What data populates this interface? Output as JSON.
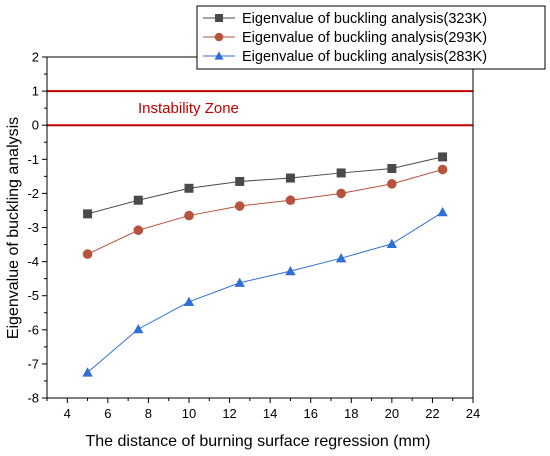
{
  "chart_data": {
    "type": "line",
    "xlabel": "The distance of burning surface regression (mm)",
    "ylabel": "Eigenvalue of buckling analysis",
    "xlim": [
      3,
      24
    ],
    "ylim": [
      -8,
      2
    ],
    "xticks": [
      4,
      6,
      8,
      10,
      12,
      14,
      16,
      18,
      20,
      22,
      24
    ],
    "yticks": [
      -8,
      -7,
      -6,
      -5,
      -4,
      -3,
      -2,
      -1,
      0,
      1,
      2
    ],
    "grid": false,
    "legend_position": "top-right",
    "annotation": {
      "text": "Instability Zone",
      "band": [
        0,
        1
      ],
      "color": "#c00000"
    },
    "series": [
      {
        "name": "Eigenvalue of buckling analysis(323K)",
        "marker": "square",
        "color": "#4a4a4a",
        "x": [
          5,
          7.5,
          10,
          12.5,
          15,
          17.5,
          20,
          22.5
        ],
        "y": [
          -2.6,
          -2.2,
          -1.85,
          -1.65,
          -1.55,
          -1.4,
          -1.27,
          -0.93
        ]
      },
      {
        "name": "Eigenvalue of buckling analysis(293K)",
        "marker": "circle",
        "color": "#b5533c",
        "x": [
          5,
          7.5,
          10,
          12.5,
          15,
          17.5,
          20,
          22.5
        ],
        "y": [
          -3.78,
          -3.08,
          -2.65,
          -2.37,
          -2.2,
          -2.0,
          -1.72,
          -1.3
        ]
      },
      {
        "name": "Eigenvalue of buckling analysis(283K)",
        "marker": "triangle",
        "color": "#2f6fd6",
        "x": [
          5,
          7.5,
          10,
          12.5,
          15,
          17.5,
          20,
          22.5
        ],
        "y": [
          -7.25,
          -5.98,
          -5.18,
          -4.62,
          -4.28,
          -3.9,
          -3.48,
          -2.55
        ]
      }
    ]
  }
}
